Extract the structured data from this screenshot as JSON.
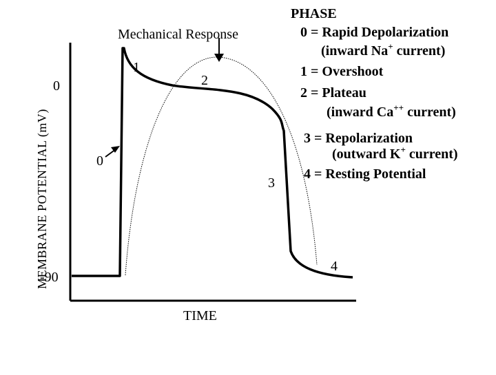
{
  "diagram": {
    "y_axis_label": "MEMBRANE POTENTIAL (mV)",
    "x_axis_label": "TIME",
    "tick_zero": "0",
    "tick_minus90": "-90",
    "mechanical_response_label": "Mechanical Response",
    "phase_markers": {
      "p0": "0",
      "p1": "1",
      "p2": "2",
      "p3": "3",
      "p4": "4"
    }
  },
  "legend": {
    "title": "PHASE",
    "line0": "0 = Rapid Depolarization",
    "line0b_pre": "(inward Na",
    "line0b_sup": "+",
    "line0b_post": " current)",
    "line1": "1 = Overshoot",
    "line2": "2 = Plateau",
    "line2b_pre": "(inward Ca",
    "line2b_sup": "++",
    "line2b_post": " current)",
    "line3": "3 = Repolarization",
    "line3b_pre": "(outward K",
    "line3b_sup": "+",
    "line3b_post": " current)",
    "line4": "4 = Resting Potential"
  },
  "colors": {
    "ink": "#000000",
    "background": "#ffffff"
  }
}
